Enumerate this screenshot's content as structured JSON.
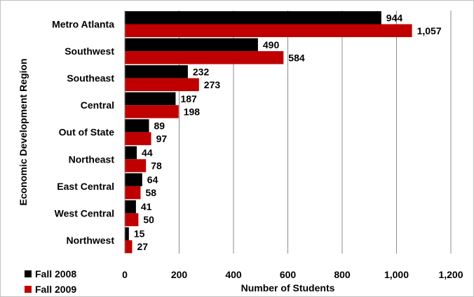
{
  "chart_data": {
    "type": "bar",
    "orientation": "horizontal",
    "categories": [
      "Metro Atlanta",
      "Southwest",
      "Southeast",
      "Central",
      "Out of State",
      "Northeast",
      "East Central",
      "West Central",
      "Northwest"
    ],
    "series": [
      {
        "name": "Fall 2008",
        "color": "#000000",
        "values": [
          944,
          490,
          232,
          187,
          89,
          44,
          64,
          41,
          15
        ],
        "labels": [
          "944",
          "490",
          "232",
          "187",
          "89",
          "44",
          "64",
          "41",
          "15"
        ]
      },
      {
        "name": "Fall 2009",
        "color": "#c00000",
        "values": [
          1057,
          584,
          273,
          198,
          97,
          78,
          58,
          50,
          27
        ],
        "labels": [
          "1,057",
          "584",
          "273",
          "198",
          "97",
          "78",
          "58",
          "50",
          "27"
        ]
      }
    ],
    "xlim": [
      0,
      1200
    ],
    "xticks": [
      0,
      200,
      400,
      600,
      800,
      1000,
      1200
    ],
    "xtick_labels": [
      "0",
      "200",
      "400",
      "600",
      "800",
      "1,000",
      "1,200"
    ],
    "xlabel": "Number of Students",
    "ylabel": "Economic Development Region",
    "grid": "vertical",
    "legend": "bottom-left"
  }
}
